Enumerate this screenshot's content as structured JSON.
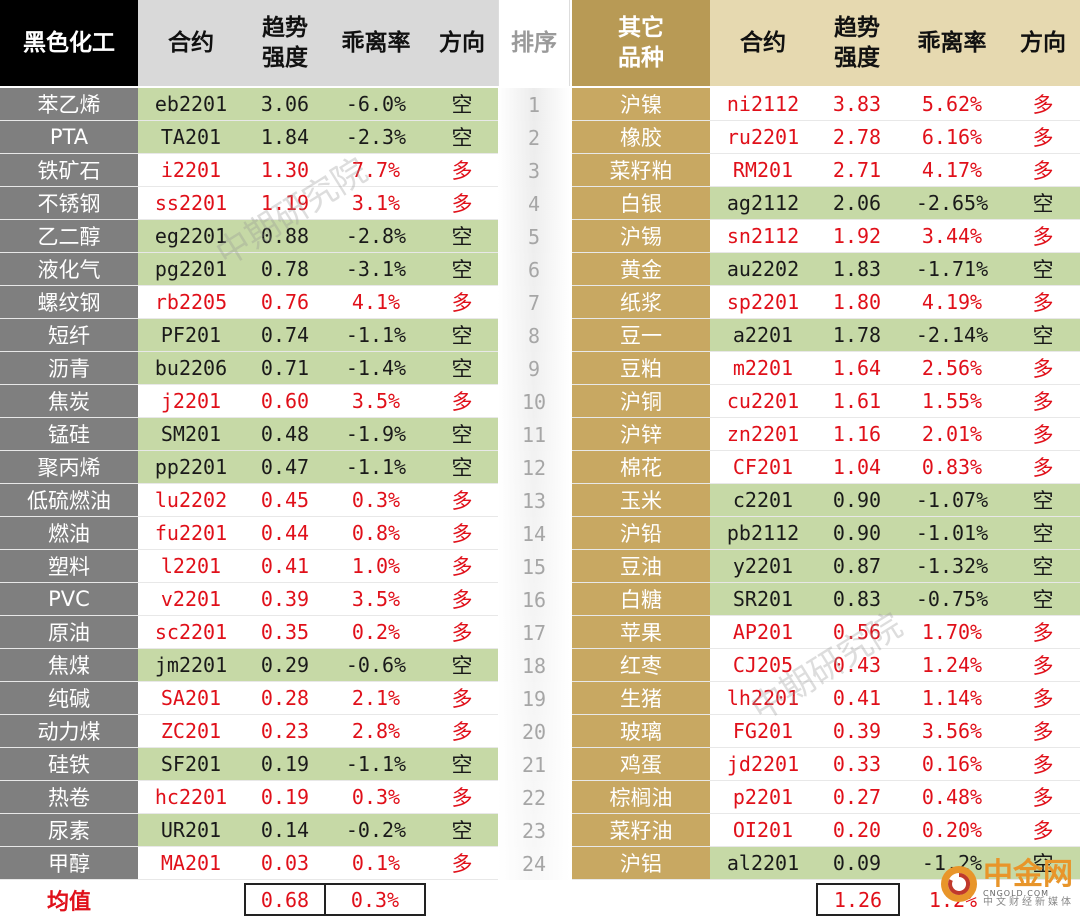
{
  "left_header": {
    "category": "黑色化工",
    "contract": "合约",
    "strength_line1": "趋势",
    "strength_line2": "强度",
    "deviation": "乖离率",
    "direction": "方向"
  },
  "rank_header": "排序",
  "right_header": {
    "category_line1": "其它",
    "category_line2": "品种",
    "contract": "合约",
    "strength_line1": "趋势",
    "strength_line2": "强度",
    "deviation": "乖离率",
    "direction": "方向"
  },
  "rows": [
    {
      "rank": "1",
      "left": {
        "name": "苯乙烯",
        "contract": "eb2201",
        "strength": "3.06",
        "deviation": "-6.0%",
        "direction": "空",
        "short": true
      },
      "right": {
        "name": "沪镍",
        "contract": "ni2112",
        "strength": "3.83",
        "deviation": "5.62%",
        "direction": "多",
        "short": false
      }
    },
    {
      "rank": "2",
      "left": {
        "name": "PTA",
        "contract": "TA201",
        "strength": "1.84",
        "deviation": "-2.3%",
        "direction": "空",
        "short": true
      },
      "right": {
        "name": "橡胶",
        "contract": "ru2201",
        "strength": "2.78",
        "deviation": "6.16%",
        "direction": "多",
        "short": false
      }
    },
    {
      "rank": "3",
      "left": {
        "name": "铁矿石",
        "contract": "i2201",
        "strength": "1.30",
        "deviation": "7.7%",
        "direction": "多",
        "short": false
      },
      "right": {
        "name": "菜籽粕",
        "contract": "RM201",
        "strength": "2.71",
        "deviation": "4.17%",
        "direction": "多",
        "short": false
      }
    },
    {
      "rank": "4",
      "left": {
        "name": "不锈钢",
        "contract": "ss2201",
        "strength": "1.19",
        "deviation": "3.1%",
        "direction": "多",
        "short": false
      },
      "right": {
        "name": "白银",
        "contract": "ag2112",
        "strength": "2.06",
        "deviation": "-2.65%",
        "direction": "空",
        "short": true
      }
    },
    {
      "rank": "5",
      "left": {
        "name": "乙二醇",
        "contract": "eg2201",
        "strength": "0.88",
        "deviation": "-2.8%",
        "direction": "空",
        "short": true
      },
      "right": {
        "name": "沪锡",
        "contract": "sn2112",
        "strength": "1.92",
        "deviation": "3.44%",
        "direction": "多",
        "short": false
      }
    },
    {
      "rank": "6",
      "left": {
        "name": "液化气",
        "contract": "pg2201",
        "strength": "0.78",
        "deviation": "-3.1%",
        "direction": "空",
        "short": true
      },
      "right": {
        "name": "黄金",
        "contract": "au2202",
        "strength": "1.83",
        "deviation": "-1.71%",
        "direction": "空",
        "short": true
      }
    },
    {
      "rank": "7",
      "left": {
        "name": "螺纹钢",
        "contract": "rb2205",
        "strength": "0.76",
        "deviation": "4.1%",
        "direction": "多",
        "short": false
      },
      "right": {
        "name": "纸浆",
        "contract": "sp2201",
        "strength": "1.80",
        "deviation": "4.19%",
        "direction": "多",
        "short": false
      }
    },
    {
      "rank": "8",
      "left": {
        "name": "短纤",
        "contract": "PF201",
        "strength": "0.74",
        "deviation": "-1.1%",
        "direction": "空",
        "short": true
      },
      "right": {
        "name": "豆一",
        "contract": "a2201",
        "strength": "1.78",
        "deviation": "-2.14%",
        "direction": "空",
        "short": true
      }
    },
    {
      "rank": "9",
      "left": {
        "name": "沥青",
        "contract": "bu2206",
        "strength": "0.71",
        "deviation": "-1.4%",
        "direction": "空",
        "short": true
      },
      "right": {
        "name": "豆粕",
        "contract": "m2201",
        "strength": "1.64",
        "deviation": "2.56%",
        "direction": "多",
        "short": false
      }
    },
    {
      "rank": "10",
      "left": {
        "name": "焦炭",
        "contract": "j2201",
        "strength": "0.60",
        "deviation": "3.5%",
        "direction": "多",
        "short": false
      },
      "right": {
        "name": "沪铜",
        "contract": "cu2201",
        "strength": "1.61",
        "deviation": "1.55%",
        "direction": "多",
        "short": false
      }
    },
    {
      "rank": "11",
      "left": {
        "name": "锰硅",
        "contract": "SM201",
        "strength": "0.48",
        "deviation": "-1.9%",
        "direction": "空",
        "short": true
      },
      "right": {
        "name": "沪锌",
        "contract": "zn2201",
        "strength": "1.16",
        "deviation": "2.01%",
        "direction": "多",
        "short": false
      }
    },
    {
      "rank": "12",
      "left": {
        "name": "聚丙烯",
        "contract": "pp2201",
        "strength": "0.47",
        "deviation": "-1.1%",
        "direction": "空",
        "short": true
      },
      "right": {
        "name": "棉花",
        "contract": "CF201",
        "strength": "1.04",
        "deviation": "0.83%",
        "direction": "多",
        "short": false
      }
    },
    {
      "rank": "13",
      "left": {
        "name": "低硫燃油",
        "contract": "lu2202",
        "strength": "0.45",
        "deviation": "0.3%",
        "direction": "多",
        "short": false
      },
      "right": {
        "name": "玉米",
        "contract": "c2201",
        "strength": "0.90",
        "deviation": "-1.07%",
        "direction": "空",
        "short": true
      }
    },
    {
      "rank": "14",
      "left": {
        "name": "燃油",
        "contract": "fu2201",
        "strength": "0.44",
        "deviation": "0.8%",
        "direction": "多",
        "short": false
      },
      "right": {
        "name": "沪铅",
        "contract": "pb2112",
        "strength": "0.90",
        "deviation": "-1.01%",
        "direction": "空",
        "short": true
      }
    },
    {
      "rank": "15",
      "left": {
        "name": "塑料",
        "contract": "l2201",
        "strength": "0.41",
        "deviation": "1.0%",
        "direction": "多",
        "short": false
      },
      "right": {
        "name": "豆油",
        "contract": "y2201",
        "strength": "0.87",
        "deviation": "-1.32%",
        "direction": "空",
        "short": true
      }
    },
    {
      "rank": "16",
      "left": {
        "name": "PVC",
        "contract": "v2201",
        "strength": "0.39",
        "deviation": "3.5%",
        "direction": "多",
        "short": false
      },
      "right": {
        "name": "白糖",
        "contract": "SR201",
        "strength": "0.83",
        "deviation": "-0.75%",
        "direction": "空",
        "short": true
      }
    },
    {
      "rank": "17",
      "left": {
        "name": "原油",
        "contract": "sc2201",
        "strength": "0.35",
        "deviation": "0.2%",
        "direction": "多",
        "short": false
      },
      "right": {
        "name": "苹果",
        "contract": "AP201",
        "strength": "0.56",
        "deviation": "1.70%",
        "direction": "多",
        "short": false
      }
    },
    {
      "rank": "18",
      "left": {
        "name": "焦煤",
        "contract": "jm2201",
        "strength": "0.29",
        "deviation": "-0.6%",
        "direction": "空",
        "short": true
      },
      "right": {
        "name": "红枣",
        "contract": "CJ205",
        "strength": "0.43",
        "deviation": "1.24%",
        "direction": "多",
        "short": false
      }
    },
    {
      "rank": "19",
      "left": {
        "name": "纯碱",
        "contract": "SA201",
        "strength": "0.28",
        "deviation": "2.1%",
        "direction": "多",
        "short": false
      },
      "right": {
        "name": "生猪",
        "contract": "lh2201",
        "strength": "0.41",
        "deviation": "1.14%",
        "direction": "多",
        "short": false
      }
    },
    {
      "rank": "20",
      "left": {
        "name": "动力煤",
        "contract": "ZC201",
        "strength": "0.23",
        "deviation": "2.8%",
        "direction": "多",
        "short": false
      },
      "right": {
        "name": "玻璃",
        "contract": "FG201",
        "strength": "0.39",
        "deviation": "3.56%",
        "direction": "多",
        "short": false
      }
    },
    {
      "rank": "21",
      "left": {
        "name": "硅铁",
        "contract": "SF201",
        "strength": "0.19",
        "deviation": "-1.1%",
        "direction": "空",
        "short": true
      },
      "right": {
        "name": "鸡蛋",
        "contract": "jd2201",
        "strength": "0.33",
        "deviation": "0.16%",
        "direction": "多",
        "short": false
      }
    },
    {
      "rank": "22",
      "left": {
        "name": "热卷",
        "contract": "hc2201",
        "strength": "0.19",
        "deviation": "0.3%",
        "direction": "多",
        "short": false
      },
      "right": {
        "name": "棕榈油",
        "contract": "p2201",
        "strength": "0.27",
        "deviation": "0.48%",
        "direction": "多",
        "short": false
      }
    },
    {
      "rank": "23",
      "left": {
        "name": "尿素",
        "contract": "UR201",
        "strength": "0.14",
        "deviation": "-0.2%",
        "direction": "空",
        "short": true
      },
      "right": {
        "name": "菜籽油",
        "contract": "OI201",
        "strength": "0.20",
        "deviation": "0.20%",
        "direction": "多",
        "short": false
      }
    },
    {
      "rank": "24",
      "left": {
        "name": "甲醇",
        "contract": "MA201",
        "strength": "0.03",
        "deviation": "0.1%",
        "direction": "多",
        "short": false
      },
      "right": {
        "name": "沪铝",
        "contract": "al2201",
        "strength": "0.09",
        "deviation": "-1.2%",
        "direction": "空",
        "short": true
      }
    }
  ],
  "footer": {
    "label": "均值",
    "left_strength": "0.68",
    "left_deviation": "0.3%",
    "right_strength": "1.26",
    "right_deviation": "1.2%"
  },
  "watermark": "中期研究院",
  "logo": {
    "brand": "中金网",
    "domain": "CNGOLD.COM",
    "slogan": "中文财经新媒体"
  },
  "colors": {
    "long": "#e0101a",
    "short_bg": "#c6d9a6",
    "left_category_bg": "#7f7f7f",
    "right_category_bg": "#c8a862"
  }
}
